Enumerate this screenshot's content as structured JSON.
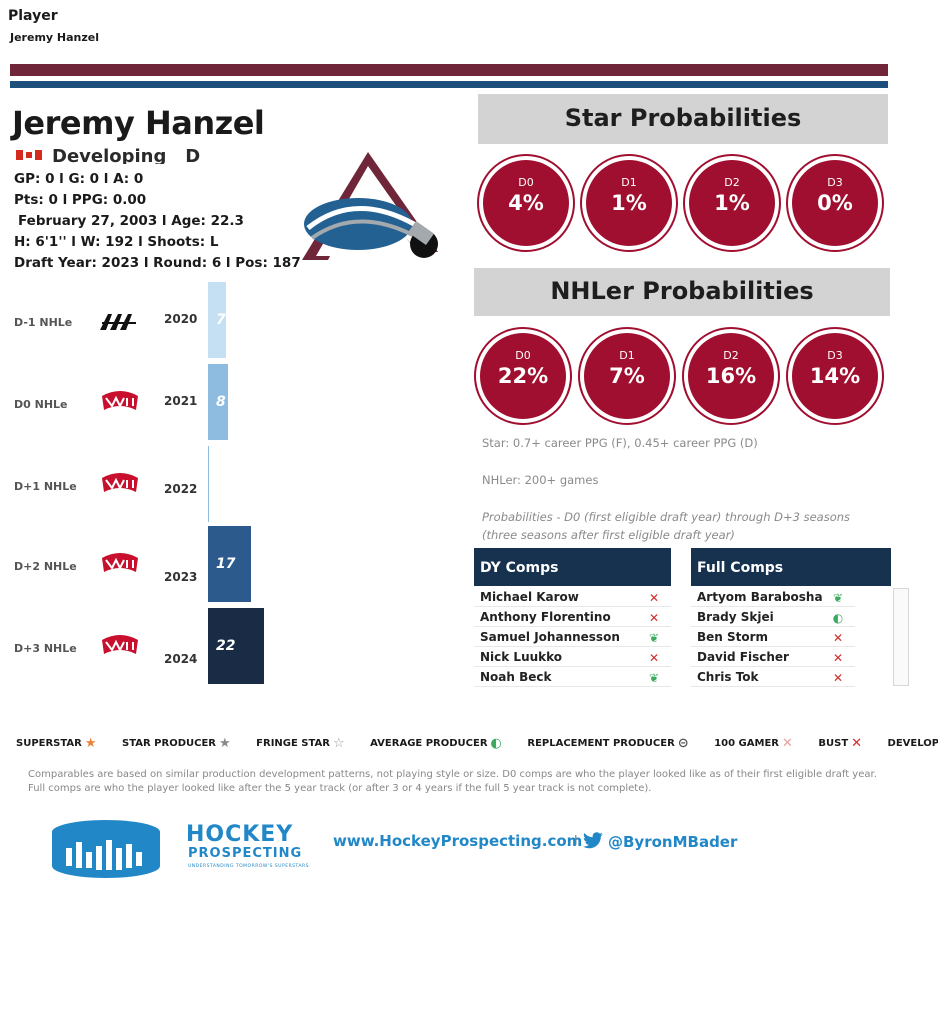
{
  "filter": {
    "label": "Player",
    "value": "Jeremy Hanzel"
  },
  "colors": {
    "maroon": "#6f2639",
    "blue": "#1d4f7c",
    "prob_red": "#a00f2f",
    "navy": "#16324f"
  },
  "player": {
    "name": "Jeremy Hanzel",
    "status": "Developing",
    "position": "D",
    "line1": "GP: 0 l G: 0 l A: 0",
    "line2": "Pts: 0 l PPG: 0.00",
    "line3": "February 27, 2003 l Age: 22.3",
    "line4": "H: 6'1'' l W: 192 l Shoots: L",
    "line5": "Draft Year: 2023 l Round: 6 l Pos: 187"
  },
  "star": {
    "title": "Star Probabilities",
    "items": [
      {
        "label": "D0",
        "value": "4%"
      },
      {
        "label": "D1",
        "value": "1%"
      },
      {
        "label": "D2",
        "value": "1%"
      },
      {
        "label": "D3",
        "value": "0%"
      }
    ]
  },
  "nhler": {
    "title": "NHLer Probabilities",
    "items": [
      {
        "label": "D0",
        "value": "22%"
      },
      {
        "label": "D1",
        "value": "7%"
      },
      {
        "label": "D2",
        "value": "16%"
      },
      {
        "label": "D3",
        "value": "14%"
      }
    ]
  },
  "notes": {
    "star_def": "Star: 0.7+ career PPG (F), 0.45+ career PPG (D)",
    "nhler_def": "NHLer: 200+ games",
    "prob_def_1": "Probabilities - D0 (first eligible draft year) through D+3 seasons",
    "prob_def_2": "(three seasons after first eligible draft year)"
  },
  "nhle": {
    "rows": [
      {
        "label": "D-1 NHLe",
        "league": "AAA",
        "year": "2020",
        "value": 7,
        "value_label": "7",
        "color": "#c5e0f2"
      },
      {
        "label": "D0 NHLe",
        "league": "WHL",
        "year": "2021",
        "value": 8,
        "value_label": "8",
        "color": "#8ebbe0"
      },
      {
        "label": "D+1 NHLe",
        "league": "WHL",
        "year": "2022",
        "value": 0,
        "value_label": "",
        "color": "#8ebbe0"
      },
      {
        "label": "D+2 NHLe",
        "league": "WHL",
        "year": "2023",
        "value": 17,
        "value_label": "17",
        "color": "#2d5a8c"
      },
      {
        "label": "D+3 NHLe",
        "league": "WHL",
        "year": "2024",
        "value": 22,
        "value_label": "22",
        "color": "#1a2c45"
      }
    ]
  },
  "dy_comps": {
    "title": "DY Comps",
    "rows": [
      {
        "name": "Michael Karow",
        "icon": "bust-icon"
      },
      {
        "name": "Anthony Florentino",
        "icon": "bust-icon"
      },
      {
        "name": "Samuel Johannesson",
        "icon": "developing-icon"
      },
      {
        "name": "Nick Luukko",
        "icon": "bust-icon"
      },
      {
        "name": "Noah Beck",
        "icon": "developing-icon"
      }
    ]
  },
  "full_comps": {
    "title": "Full Comps",
    "rows": [
      {
        "name": "Artyom Barabosha",
        "icon": "developing-icon"
      },
      {
        "name": "Brady Skjei",
        "icon": "average-producer-icon"
      },
      {
        "name": "Ben Storm",
        "icon": "bust-icon"
      },
      {
        "name": "David Fischer",
        "icon": "bust-icon"
      },
      {
        "name": "Chris Tok",
        "icon": "bust-icon"
      }
    ]
  },
  "legend": {
    "superstar": "SUPERSTAR",
    "star_producer": "STAR PRODUCER",
    "fringe_star": "FRINGE STAR",
    "average_producer": "AVERAGE PRODUCER",
    "replacement_producer": "REPLACEMENT PRODUCER",
    "gamer": "100 GAMER",
    "bust": "BUST",
    "developing": "DEVELOPING"
  },
  "disclaimer": "Comparables are based on similar production development patterns, not playing style or size. D0 comps are who the player looked like as of their first eligible draft year. Full comps are who the player looked like after the 5 year track (or after 3 or 4 years if the full 5 year track is not complete).",
  "footer": {
    "brand_line1": "HOCKEY",
    "brand_line2": "PROSPECTING",
    "brand_tagline": "UNDERSTANDING TOMORROW'S SUPERSTARS",
    "website": "www.HockeyProspecting.com",
    "separator": "l",
    "twitter": "@ByronMBader"
  }
}
